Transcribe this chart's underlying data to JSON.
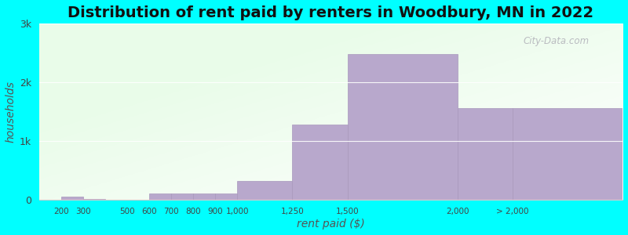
{
  "title": "Distribution of rent paid by renters in Woodbury, MN in 2022",
  "xlabel": "rent paid ($)",
  "ylabel": "households",
  "background_color": "#00FFFF",
  "bar_color": "#b8a8cc",
  "bar_edge_color": "#a898bc",
  "categories": [
    "200",
    "300",
    "500",
    "600",
    "700",
    "800",
    "900",
    "1,000",
    "1,250",
    "1,500",
    "2,000",
    "> 2,000"
  ],
  "values": [
    55,
    20,
    5,
    110,
    115,
    115,
    105,
    320,
    1280,
    2480,
    1560,
    1560
  ],
  "ylim": [
    0,
    3000
  ],
  "yticks": [
    0,
    1000,
    2000,
    3000
  ],
  "ytick_labels": [
    "0",
    "1k",
    "2k",
    "3k"
  ],
  "watermark_text": "City-Data.com",
  "title_fontsize": 14,
  "axis_label_fontsize": 10,
  "bar_positions": [
    200,
    300,
    500,
    600,
    700,
    800,
    900,
    1000,
    1250,
    1500,
    2000,
    2250
  ],
  "bar_widths": [
    100,
    100,
    100,
    100,
    100,
    100,
    100,
    250,
    250,
    500,
    250,
    500
  ]
}
